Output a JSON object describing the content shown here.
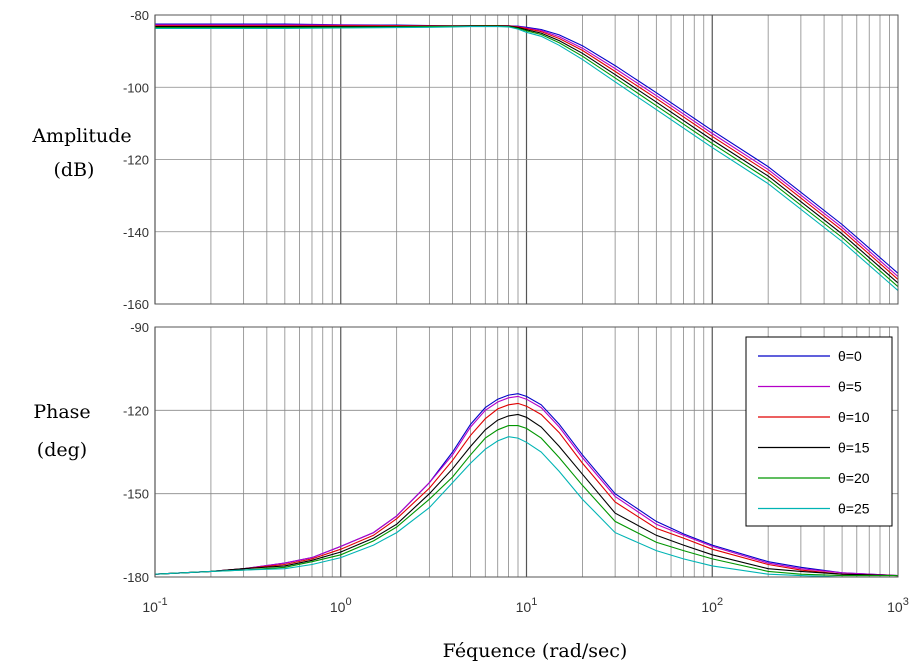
{
  "chart_data": [
    {
      "type": "line",
      "panel": "magnitude",
      "ylabel_lines": [
        "Amplitude",
        "(dB)"
      ],
      "xscale": "log",
      "xlim": [
        0.1,
        1000
      ],
      "ylim": [
        -160,
        -80
      ],
      "yticks": [
        -80,
        -100,
        -120,
        -140,
        -160
      ],
      "grid": true,
      "x": [
        0.1,
        0.2,
        0.5,
        1,
        2,
        3,
        4,
        5,
        6,
        7,
        8,
        9,
        10,
        12,
        15,
        20,
        30,
        50,
        100,
        200,
        500,
        1000
      ],
      "series": [
        {
          "name": "θ=0",
          "color": "#0000c8",
          "values": [
            -82.5,
            -82.5,
            -82.5,
            -82.7,
            -82.8,
            -82.9,
            -82.9,
            -82.9,
            -82.9,
            -82.9,
            -83.0,
            -83.1,
            -83.4,
            -84.0,
            -85.5,
            -88.5,
            -94.0,
            -101.5,
            -112.0,
            -122.0,
            -138.0,
            -151.5
          ]
        },
        {
          "name": "θ=5",
          "color": "#b400c8",
          "values": [
            -82.7,
            -82.7,
            -82.7,
            -82.8,
            -82.9,
            -82.9,
            -82.9,
            -82.9,
            -82.9,
            -82.9,
            -83.0,
            -83.2,
            -83.6,
            -84.3,
            -86.0,
            -89.2,
            -94.8,
            -102.3,
            -112.8,
            -122.8,
            -138.8,
            -152.4
          ]
        },
        {
          "name": "θ=10",
          "color": "#e00000",
          "values": [
            -83.0,
            -83.0,
            -83.0,
            -83.0,
            -83.0,
            -83.0,
            -83.0,
            -83.0,
            -82.9,
            -82.9,
            -83.0,
            -83.3,
            -83.8,
            -84.6,
            -86.5,
            -89.8,
            -95.6,
            -103.1,
            -113.6,
            -123.6,
            -139.6,
            -153.2
          ]
        },
        {
          "name": "θ=15",
          "color": "#000000",
          "values": [
            -83.2,
            -83.2,
            -83.2,
            -83.2,
            -83.2,
            -83.1,
            -83.1,
            -83.0,
            -83.0,
            -83.0,
            -83.1,
            -83.5,
            -84.1,
            -85.0,
            -87.1,
            -90.6,
            -96.5,
            -104.1,
            -114.6,
            -124.6,
            -140.6,
            -154.2
          ]
        },
        {
          "name": "θ=20",
          "color": "#009600",
          "values": [
            -83.5,
            -83.5,
            -83.5,
            -83.4,
            -83.3,
            -83.2,
            -83.1,
            -83.1,
            -83.1,
            -83.1,
            -83.2,
            -83.7,
            -84.4,
            -85.4,
            -87.7,
            -91.4,
            -97.4,
            -105.1,
            -115.6,
            -125.6,
            -141.6,
            -155.2
          ]
        },
        {
          "name": "θ=25",
          "color": "#00b4b4",
          "values": [
            -83.7,
            -83.7,
            -83.7,
            -83.6,
            -83.5,
            -83.4,
            -83.3,
            -83.2,
            -83.2,
            -83.2,
            -83.3,
            -83.9,
            -84.8,
            -85.9,
            -88.4,
            -92.3,
            -98.5,
            -106.2,
            -116.7,
            -126.7,
            -142.7,
            -156.3
          ]
        }
      ]
    },
    {
      "type": "line",
      "panel": "phase",
      "ylabel_lines": [
        "Phase",
        "(deg)"
      ],
      "xlabel": "Féquence  (rad/sec)",
      "xscale": "log",
      "xlim": [
        0.1,
        1000
      ],
      "ylim": [
        -180,
        -90
      ],
      "yticks": [
        -90,
        -120,
        -150,
        -180
      ],
      "xticks": [
        0.1,
        1,
        10,
        100,
        1000
      ],
      "xtick_base": "10",
      "xtick_exponents": [
        "-1",
        "0",
        "1",
        "2",
        "3"
      ],
      "grid": true,
      "legend_position": "right",
      "x": [
        0.1,
        0.2,
        0.3,
        0.5,
        0.7,
        1,
        1.5,
        2,
        3,
        4,
        5,
        6,
        7,
        8,
        9,
        10,
        12,
        15,
        20,
        30,
        50,
        70,
        100,
        200,
        300,
        500,
        1000
      ],
      "series": [
        {
          "name": "θ=0",
          "color": "#0000c8",
          "values": [
            -179,
            -178,
            -177,
            -175,
            -173,
            -169,
            -164,
            -158,
            -146,
            -135,
            -125,
            -119,
            -116,
            -114.5,
            -114,
            -115,
            -118,
            -125,
            -136,
            -150,
            -160,
            -164.5,
            -168.5,
            -174.5,
            -176.5,
            -178.5,
            -179.5
          ]
        },
        {
          "name": "θ=5",
          "color": "#b400c8",
          "values": [
            -179,
            -178,
            -177,
            -175,
            -173,
            -169,
            -164,
            -158,
            -146,
            -136,
            -126,
            -120,
            -117,
            -115.5,
            -115,
            -116,
            -119,
            -126,
            -137,
            -151,
            -161,
            -165,
            -169,
            -175,
            -177,
            -178.5,
            -179.5
          ]
        },
        {
          "name": "θ=10",
          "color": "#e00000",
          "values": [
            -179,
            -178,
            -177,
            -175.5,
            -173.5,
            -170,
            -165,
            -159,
            -148,
            -138,
            -129,
            -123,
            -119.5,
            -118,
            -117.5,
            -118.5,
            -121.5,
            -128,
            -139,
            -153,
            -162.5,
            -166,
            -170,
            -175.5,
            -177.5,
            -179,
            -179.5
          ]
        },
        {
          "name": "θ=15",
          "color": "#000000",
          "values": [
            -179,
            -178,
            -177,
            -176,
            -174,
            -171,
            -166,
            -161,
            -150,
            -141,
            -133,
            -127,
            -123.5,
            -122,
            -121.5,
            -122.5,
            -126,
            -133,
            -143,
            -157,
            -165,
            -168.5,
            -172,
            -177,
            -178,
            -179,
            -179.5
          ]
        },
        {
          "name": "θ=20",
          "color": "#009600",
          "values": [
            -179,
            -178,
            -177.5,
            -176.5,
            -174.5,
            -172,
            -167,
            -162,
            -152,
            -144,
            -136,
            -130,
            -127,
            -125.5,
            -125.5,
            -126.5,
            -130,
            -137,
            -147,
            -160,
            -167.5,
            -170.5,
            -173.5,
            -178,
            -179,
            -179.5,
            -179.5
          ]
        },
        {
          "name": "θ=25",
          "color": "#00b4b4",
          "values": [
            -179,
            -178,
            -177.5,
            -177,
            -175.5,
            -173,
            -168.5,
            -164,
            -155,
            -146,
            -139,
            -134,
            -131,
            -129.5,
            -130,
            -131.5,
            -135,
            -142,
            -152,
            -164,
            -170.5,
            -173.5,
            -176,
            -179,
            -179.5,
            -180,
            -180
          ]
        }
      ]
    }
  ]
}
